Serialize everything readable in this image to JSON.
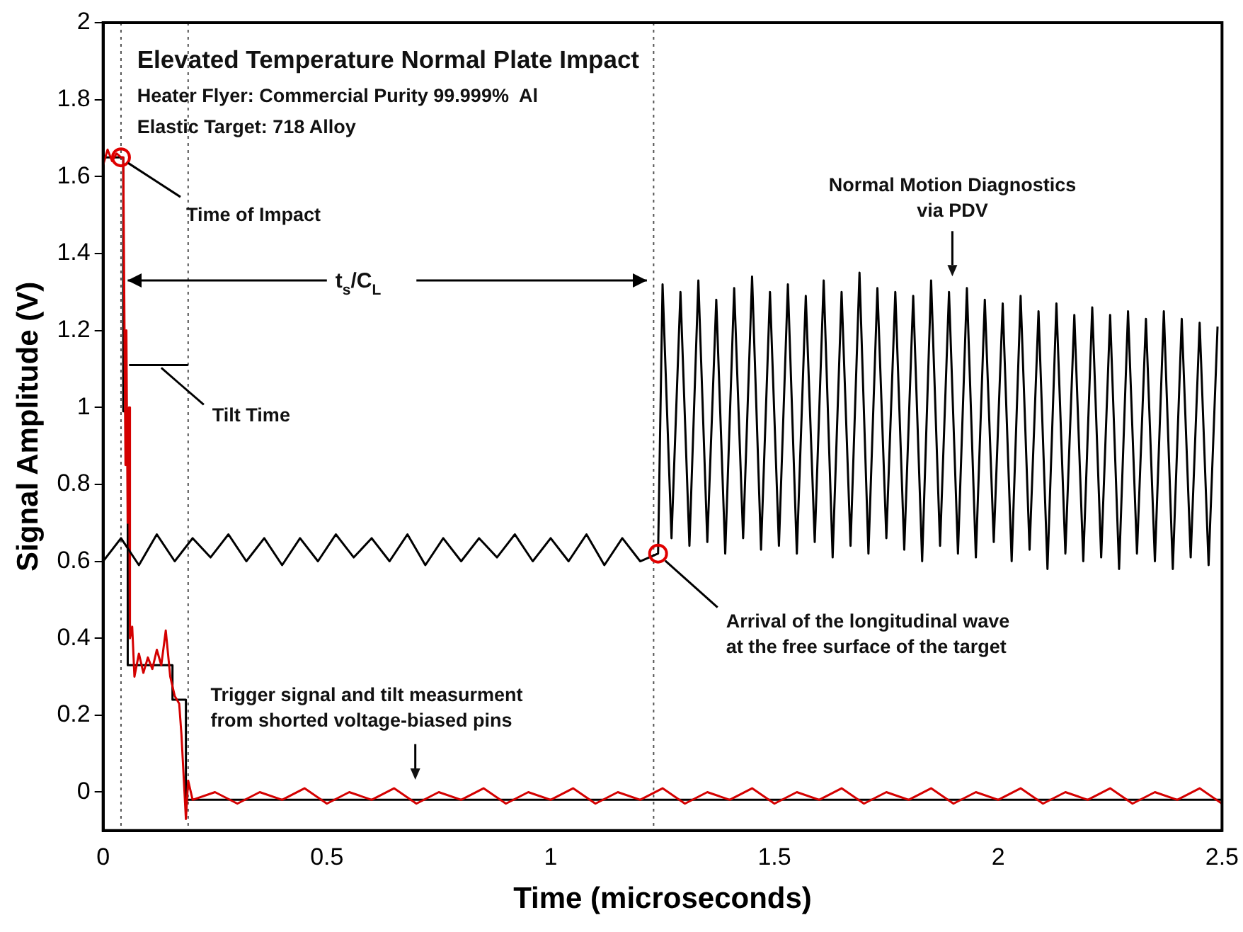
{
  "chart_data": {
    "type": "line",
    "title": "Elevated Temperature Normal Plate Impact",
    "xlabel": "Time (microseconds)",
    "ylabel": "Signal Amplitude (V)",
    "xlim": [
      0,
      2.5
    ],
    "ylim": [
      -0.1,
      2
    ],
    "xticks": [
      0,
      0.5,
      1,
      1.5,
      2,
      2.5
    ],
    "yticks": [
      0,
      0.2,
      0.4,
      0.6,
      0.8,
      1,
      1.2,
      1.4,
      1.6,
      1.8,
      2
    ],
    "grid": false,
    "legend": false,
    "marker": "none",
    "line_style": "solid",
    "series": [
      {
        "color": "#000000",
        "x": [
          0,
          0.04,
          0.08,
          0.12,
          0.16,
          0.2,
          0.24,
          0.28,
          0.32,
          0.36,
          0.4,
          0.44,
          0.48,
          0.52,
          0.56,
          0.6,
          0.64,
          0.68,
          0.72,
          0.76,
          0.8,
          0.84,
          0.88,
          0.92,
          0.96,
          1.0,
          1.04,
          1.08,
          1.12,
          1.16,
          1.2,
          1.24,
          1.25,
          1.27,
          1.29,
          1.31,
          1.33,
          1.35,
          1.37,
          1.39,
          1.41,
          1.43,
          1.45,
          1.47,
          1.49,
          1.51,
          1.53,
          1.55,
          1.57,
          1.59,
          1.61,
          1.63,
          1.65,
          1.67,
          1.69,
          1.71,
          1.73,
          1.75,
          1.77,
          1.79,
          1.81,
          1.83,
          1.85,
          1.87,
          1.89,
          1.91,
          1.93,
          1.95,
          1.97,
          1.99,
          2.01,
          2.03,
          2.05,
          2.07,
          2.09,
          2.11,
          2.13,
          2.15,
          2.17,
          2.19,
          2.21,
          2.23,
          2.25,
          2.27,
          2.29,
          2.31,
          2.33,
          2.35,
          2.37,
          2.39,
          2.41,
          2.43,
          2.45,
          2.47,
          2.49
        ],
        "values": [
          0.6,
          0.66,
          0.59,
          0.67,
          0.6,
          0.66,
          0.61,
          0.67,
          0.6,
          0.66,
          0.59,
          0.66,
          0.6,
          0.67,
          0.61,
          0.66,
          0.6,
          0.67,
          0.59,
          0.66,
          0.6,
          0.66,
          0.61,
          0.67,
          0.6,
          0.66,
          0.6,
          0.67,
          0.59,
          0.66,
          0.6,
          0.62,
          1.32,
          0.66,
          1.3,
          0.64,
          1.33,
          0.65,
          1.28,
          0.62,
          1.31,
          0.66,
          1.34,
          0.63,
          1.3,
          0.64,
          1.32,
          0.62,
          1.29,
          0.65,
          1.33,
          0.61,
          1.3,
          0.64,
          1.35,
          0.62,
          1.31,
          0.66,
          1.3,
          0.63,
          1.29,
          0.6,
          1.33,
          0.64,
          1.3,
          0.62,
          1.31,
          0.61,
          1.28,
          0.65,
          1.27,
          0.6,
          1.29,
          0.63,
          1.25,
          0.58,
          1.27,
          0.62,
          1.24,
          0.6,
          1.26,
          0.61,
          1.24,
          0.58,
          1.25,
          0.62,
          1.23,
          0.6,
          1.25,
          0.58,
          1.23,
          0.61,
          1.22,
          0.59,
          1.21
        ]
      },
      {
        "color": "#d40000",
        "x": [
          0,
          0.01,
          0.02,
          0.03,
          0.04,
          0.045,
          0.05,
          0.052,
          0.055,
          0.058,
          0.06,
          0.065,
          0.07,
          0.08,
          0.09,
          0.1,
          0.11,
          0.12,
          0.13,
          0.14,
          0.145,
          0.15,
          0.16,
          0.17,
          0.175,
          0.185,
          0.19,
          0.2,
          0.25,
          0.3,
          0.35,
          0.4,
          0.45,
          0.5,
          0.55,
          0.6,
          0.65,
          0.7,
          0.75,
          0.8,
          0.85,
          0.9,
          0.95,
          1.0,
          1.05,
          1.1,
          1.15,
          1.2,
          1.25,
          1.3,
          1.35,
          1.4,
          1.45,
          1.5,
          1.55,
          1.6,
          1.65,
          1.7,
          1.75,
          1.8,
          1.85,
          1.9,
          1.95,
          2.0,
          2.05,
          2.1,
          2.15,
          2.2,
          2.25,
          2.3,
          2.35,
          2.4,
          2.45,
          2.5
        ],
        "values": [
          1.63,
          1.67,
          1.64,
          1.66,
          1.65,
          1.65,
          0.85,
          1.2,
          0.7,
          1.0,
          0.4,
          0.43,
          0.3,
          0.36,
          0.31,
          0.35,
          0.32,
          0.37,
          0.33,
          0.42,
          0.36,
          0.3,
          0.25,
          0.23,
          0.15,
          -0.07,
          0.03,
          -0.02,
          0.0,
          -0.03,
          0.0,
          -0.02,
          0.01,
          -0.03,
          0.0,
          -0.02,
          0.01,
          -0.03,
          0.0,
          -0.02,
          0.01,
          -0.03,
          0.0,
          -0.02,
          0.01,
          -0.03,
          0.0,
          -0.02,
          0.01,
          -0.03,
          0.0,
          -0.02,
          0.01,
          -0.03,
          0.0,
          -0.02,
          0.01,
          -0.03,
          0.0,
          -0.02,
          0.01,
          -0.03,
          0.0,
          -0.02,
          0.01,
          -0.03,
          0.0,
          -0.02,
          0.01,
          -0.03,
          0.0,
          -0.02,
          0.01,
          -0.03
        ]
      },
      {
        "color": "#000000",
        "x": [
          0,
          0.045,
          0.045,
          0.055,
          0.055,
          0.155,
          0.155,
          0.185,
          0.185,
          2.5
        ],
        "values": [
          1.65,
          1.65,
          0.99,
          0.99,
          0.33,
          0.33,
          0.24,
          0.24,
          -0.02,
          -0.02
        ]
      },
      {
        "color": "#000000",
        "x": [
          0.058,
          0.19
        ],
        "values": [
          1.11,
          1.11
        ]
      },
      {
        "color": "#000000",
        "x": [
          0.055,
          0.5,
          0.6,
          0.7,
          1.215
        ],
        "values": [
          1.33,
          1.33,
          null,
          1.33,
          1.33
        ]
      }
    ],
    "ref_lines": [
      {
        "axis": "x",
        "value": 0.04,
        "line_style": "dotted",
        "color": "#555555"
      },
      {
        "axis": "x",
        "value": 0.19,
        "line_style": "dotted",
        "color": "#555555"
      },
      {
        "axis": "x",
        "value": 1.23,
        "line_style": "dotted",
        "color": "#555555"
      }
    ],
    "annotations": [
      "Heater Flyer: Commercial Purity 99.999%  Al",
      "Elastic Target: 718 Alloy",
      {
        "text": "Time of Impact",
        "x": 0.04,
        "y": 1.65
      },
      {
        "text": "t$_{s}$/C$_{L}$",
        "x": 0.5,
        "y": 1.33
      },
      {
        "text": "Tilt Time",
        "x": 0.13,
        "y": 1.11
      },
      "Normal Motion Diagnostics\nvia PDV",
      {
        "text": "Arrival of the longitudinal wave\nat the free surface of the target",
        "x": 1.24,
        "y": 0.62
      },
      "Trigger signal and tilt measurment\nfrom shorted voltage-biased pins"
    ]
  }
}
